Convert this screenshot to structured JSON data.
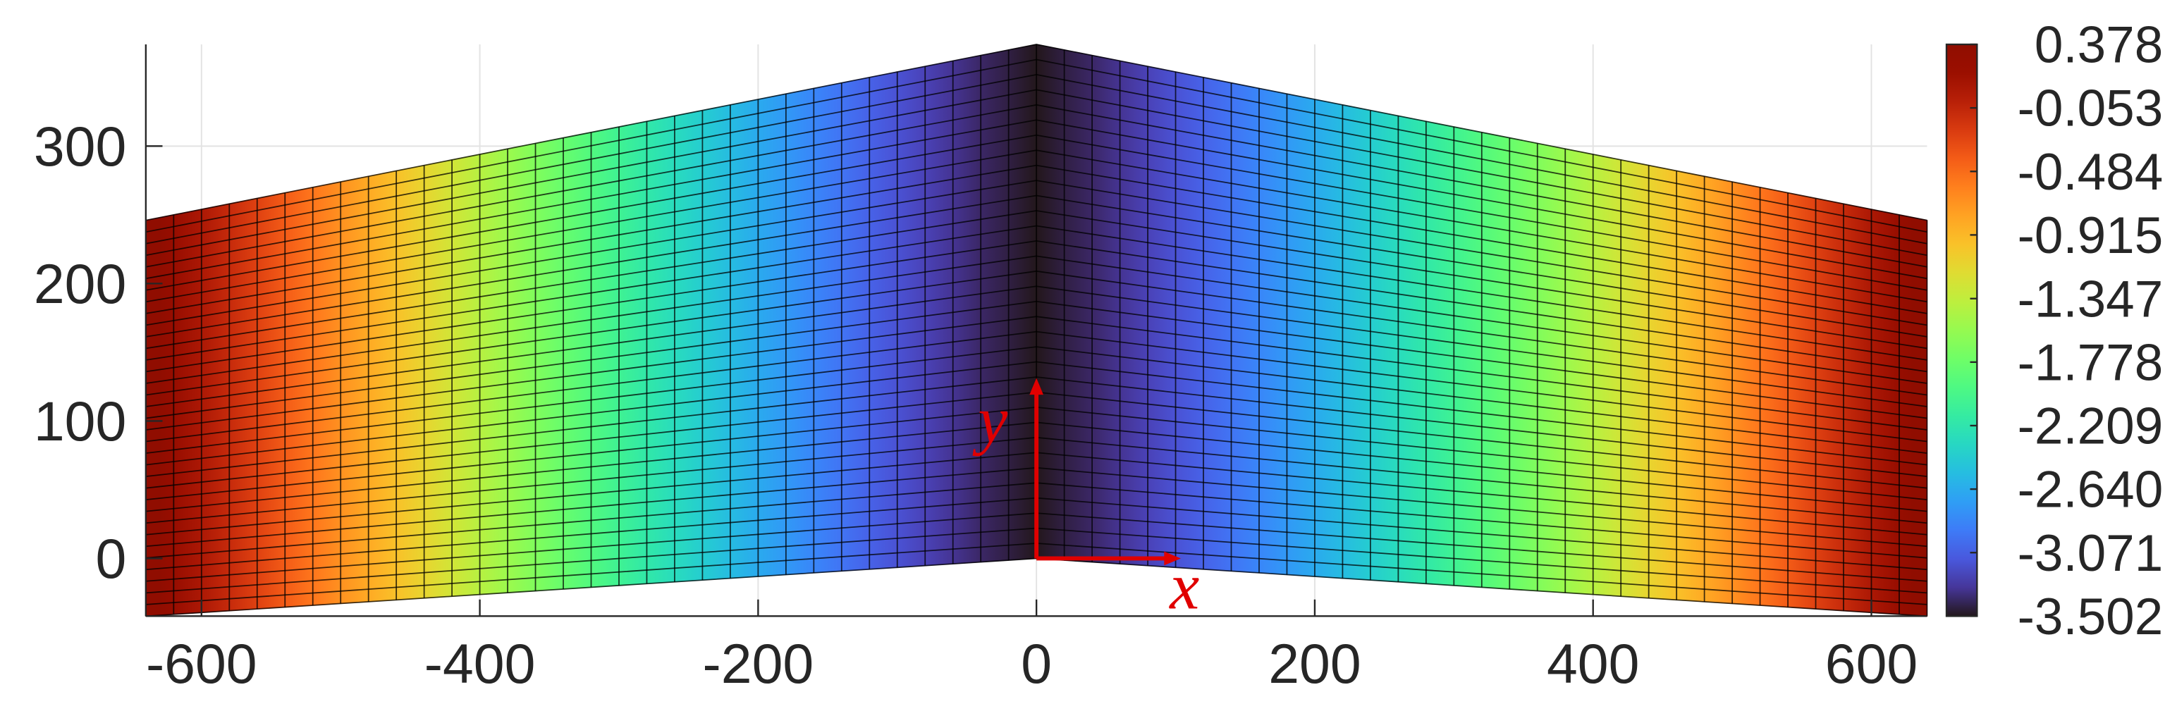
{
  "chart_data": {
    "type": "mesh",
    "x": [
      -640,
      -600,
      -560,
      -520,
      -480,
      -440,
      -400,
      -360,
      -320,
      -280,
      -240,
      -200,
      -160,
      -120,
      -80,
      -40,
      0,
      40,
      80,
      120,
      160,
      200,
      240,
      280,
      320,
      360,
      400,
      440,
      480,
      520,
      560,
      600,
      640
    ],
    "values": [
      0.378,
      0.06,
      -0.24,
      -0.54,
      -0.83,
      -1.12,
      -1.4,
      -1.67,
      -1.93,
      -2.18,
      -2.42,
      -2.65,
      -2.86,
      -3.06,
      -3.24,
      -3.4,
      -3.502,
      -3.4,
      -3.24,
      -3.06,
      -2.86,
      -2.65,
      -2.42,
      -2.18,
      -1.93,
      -1.67,
      -1.4,
      -1.12,
      -0.83,
      -0.54,
      -0.24,
      0.06,
      0.378
    ],
    "outline": {
      "x": [
        -640,
        0,
        640
      ],
      "top": [
        246,
        374,
        246
      ],
      "bottom": [
        -42,
        0,
        -42
      ]
    },
    "xlim": [
      -640,
      640
    ],
    "ylim": [
      -42,
      374
    ],
    "xticks": [
      -600,
      -400,
      -200,
      0,
      200,
      400,
      600
    ],
    "yticks": [
      0,
      100,
      200,
      300
    ],
    "grid": true,
    "colormap": "turbo",
    "clim": [
      -3.502,
      0.378
    ],
    "cticks": [
      0.378,
      -0.053,
      -0.484,
      -0.915,
      -1.347,
      -1.778,
      -2.209,
      {
        "value": -2.64,
        "label": "-2.640"
      },
      -3.071,
      -3.502
    ],
    "annotations": [
      "x",
      "y"
    ],
    "annotation_color": "#e00000"
  }
}
